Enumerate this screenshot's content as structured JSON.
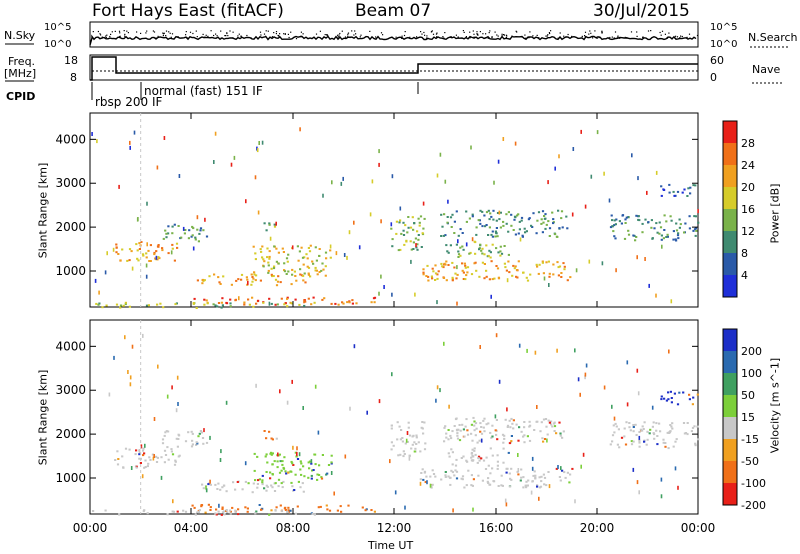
{
  "header": {
    "station": "Fort Hays East (fitACF)",
    "beam": "Beam 07",
    "date": "30/Jul/2015"
  },
  "top_panels": {
    "nsky_label": "N.Sky",
    "nsky_ticks": [
      "10^5",
      "10^0"
    ],
    "nsearch_label": "N.Search",
    "nsearch_ticks": [
      "10^5",
      "10^0"
    ],
    "freq_label": "Freq.",
    "freq_unit": "[MHz]",
    "freq_ticks": [
      "18",
      "8"
    ],
    "nave_label": "Nave",
    "nave_ticks": [
      "60",
      "0"
    ],
    "cpid_label": "CPID",
    "cpid_modes": [
      "rbsp 200 IF",
      "normal (fast) 151 IF"
    ]
  },
  "chart_data": [
    {
      "type": "heatmap",
      "name": "power",
      "ylabel": "Slant Range [km]",
      "y_ticks": [
        "1000",
        "2000",
        "3000",
        "4000"
      ],
      "ylim": [
        180,
        4600
      ],
      "colorbar_label": "Power [dB]",
      "colorbar_ticks": [
        "4",
        "8",
        "12",
        "16",
        "20",
        "24",
        "28"
      ],
      "colors": [
        "#1f2fd8",
        "#2a5aa8",
        "#3f8a70",
        "#7ab24a",
        "#d6cc2a",
        "#f0a020",
        "#f07018",
        "#e82018"
      ]
    },
    {
      "type": "heatmap",
      "name": "velocity",
      "ylabel": "Slant Range [km]",
      "y_ticks": [
        "1000",
        "2000",
        "3000",
        "4000"
      ],
      "ylim": [
        180,
        4600
      ],
      "colorbar_label": "Velocity [m s^-1]",
      "colorbar_ticks": [
        "200",
        "100",
        "50",
        "15",
        "-15",
        "-50",
        "-100",
        "-200"
      ],
      "colors": [
        "#1c2fc8",
        "#2a6ab0",
        "#3fa060",
        "#7ccf3a",
        "#c8c8c8",
        "#f0a020",
        "#f07018",
        "#e82018"
      ]
    }
  ],
  "x_axis": {
    "label": "Time UT",
    "ticks": [
      "00:00",
      "04:00",
      "08:00",
      "12:00",
      "16:00",
      "20:00",
      "00:00"
    ]
  }
}
